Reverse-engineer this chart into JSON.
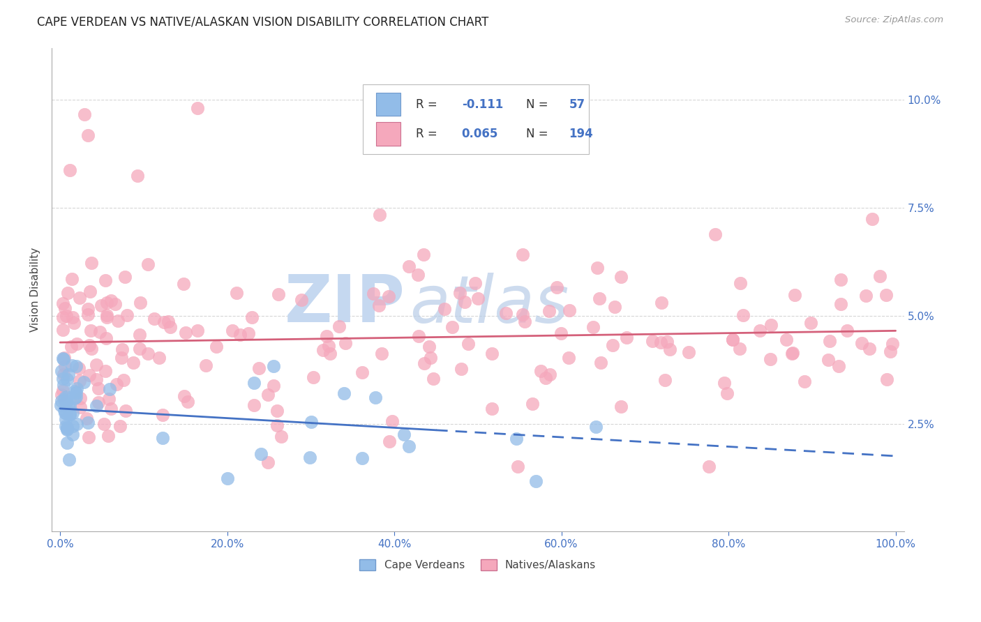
{
  "title": "CAPE VERDEAN VS NATIVE/ALASKAN VISION DISABILITY CORRELATION CHART",
  "source": "Source: ZipAtlas.com",
  "ylabel": "Vision Disability",
  "xlim": [
    -1,
    101
  ],
  "ylim": [
    0.0,
    11.2
  ],
  "yticks": [
    2.5,
    5.0,
    7.5,
    10.0
  ],
  "ytick_labels": [
    "2.5%",
    "5.0%",
    "7.5%",
    "10.0%"
  ],
  "xticks": [
    0,
    20,
    40,
    60,
    80,
    100
  ],
  "xtick_labels": [
    "0.0%",
    "20.0%",
    "40.0%",
    "60.0%",
    "80.0%",
    "100.0%"
  ],
  "cape_verdean_color": "#92bce8",
  "native_color": "#f5a8bc",
  "cape_verdean_R": -0.111,
  "cape_verdean_N": 57,
  "native_R": 0.065,
  "native_N": 194,
  "cv_line_color": "#4472c4",
  "nat_line_color": "#d4607a",
  "background_color": "#ffffff",
  "grid_color": "#cccccc",
  "axis_color": "#4472c4",
  "watermark_zip_color": "#c5d8f0",
  "watermark_atlas_color": "#b8cde8",
  "cv_line_x0": 0,
  "cv_line_x1": 45,
  "cv_line_y0": 2.85,
  "cv_line_y1": 2.35,
  "cv_dash_x0": 45,
  "cv_dash_x1": 100,
  "cv_dash_y0": 2.35,
  "cv_dash_y1": 1.75,
  "nat_line_x0": 0,
  "nat_line_x1": 100,
  "nat_line_y0": 4.38,
  "nat_line_y1": 4.65
}
